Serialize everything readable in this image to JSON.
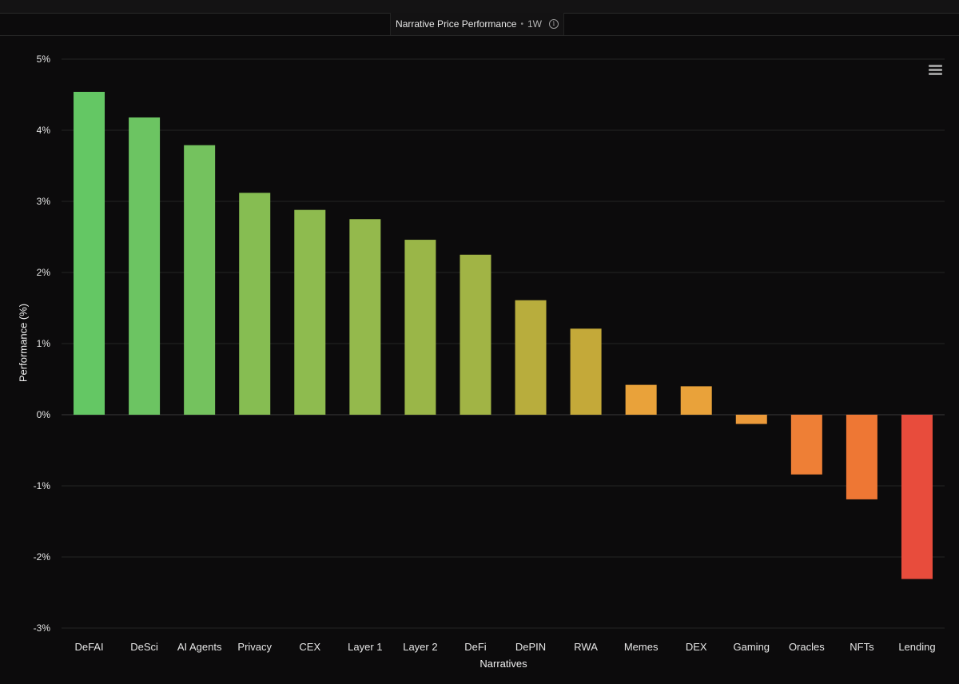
{
  "header": {
    "title": "Narrative Price Performance",
    "separator": "•",
    "period": "1W",
    "info_icon": "info-icon"
  },
  "toolbar": {
    "menu_icon": "hamburger-menu-icon"
  },
  "chart_data": {
    "type": "bar",
    "title": "Narrative Price Performance",
    "xlabel": "Narratives",
    "ylabel": "Performance (%)",
    "ylim": [
      -3,
      5
    ],
    "yticks": [
      "5%",
      "4%",
      "3%",
      "2%",
      "1%",
      "0%",
      "-1%",
      "-2%",
      "-3%"
    ],
    "ytick_values": [
      5,
      4,
      3,
      2,
      1,
      0,
      -1,
      -2,
      -3
    ],
    "grid": true,
    "categories": [
      "DeFAI",
      "DeSci",
      "AI Agents",
      "Privacy",
      "CEX",
      "Layer 1",
      "Layer 2",
      "DeFi",
      "DePIN",
      "RWA",
      "Memes",
      "DEX",
      "Gaming",
      "Oracles",
      "NFTs",
      "Lending"
    ],
    "values": [
      4.54,
      4.18,
      3.79,
      3.12,
      2.88,
      2.75,
      2.46,
      2.25,
      1.61,
      1.21,
      0.42,
      0.4,
      -0.13,
      -0.84,
      -1.19,
      -2.31
    ],
    "colors": [
      "#64c764",
      "#6cc462",
      "#74c25e",
      "#86bd52",
      "#8ebb4f",
      "#94b94c",
      "#9ab648",
      "#a1b445",
      "#b8ad3d",
      "#c4a939",
      "#e9a23a",
      "#e9a23a",
      "#ec9a3a",
      "#ee7f36",
      "#ee7734",
      "#e84c3c"
    ]
  }
}
